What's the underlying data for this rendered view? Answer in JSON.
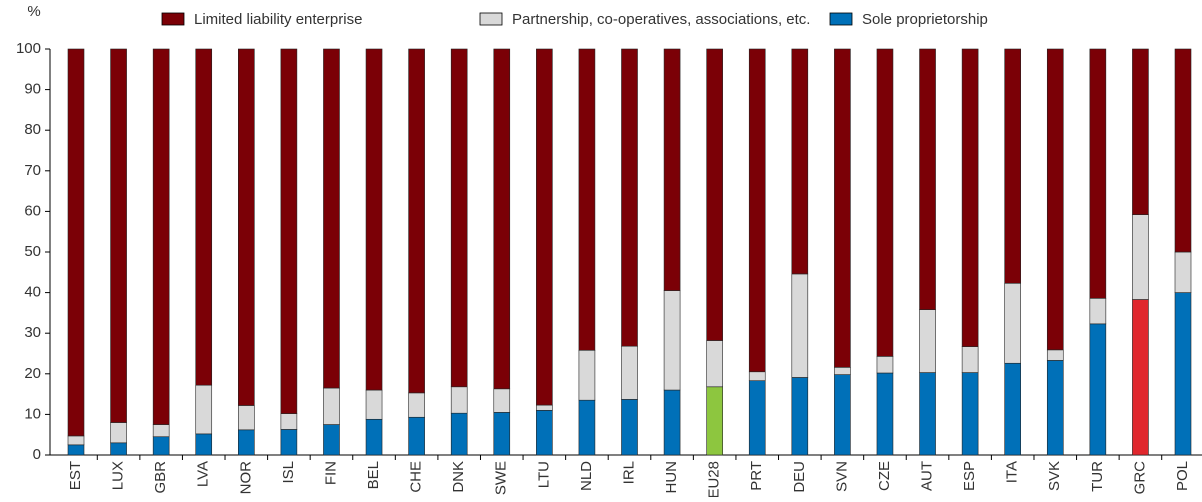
{
  "chart_data": {
    "type": "stacked_bar",
    "y_label": "%",
    "categories": [
      "EST",
      "LUX",
      "GBR",
      "LVA",
      "NOR",
      "ISL",
      "FIN",
      "BEL",
      "CHE",
      "DNK",
      "SWE",
      "LTU",
      "NLD",
      "IRL",
      "HUN",
      "EU28",
      "PRT",
      "DEU",
      "SVN",
      "CZE",
      "AUT",
      "ESP",
      "ITA",
      "SVK",
      "TUR",
      "GRC",
      "POL"
    ],
    "series": [
      {
        "name": "Limited liability enterprise",
        "color": "#7b0006",
        "values": [
          95.3,
          92,
          92.5,
          82.8,
          87.8,
          89.8,
          83.5,
          84,
          84.7,
          83.2,
          83.7,
          87.7,
          74.2,
          73.2,
          59.5,
          71.8,
          79.5,
          55.4,
          78.4,
          75.7,
          64.2,
          73.3,
          57.7,
          74.1,
          61.4,
          40.8,
          50
        ]
      },
      {
        "name": "Partnership, co-operatives, associations, etc.",
        "color": "#d9d9d9",
        "values": [
          2.2,
          5,
          3,
          12,
          6,
          3.9,
          9,
          7.2,
          6,
          6.5,
          5.8,
          1.3,
          12.3,
          13.1,
          24.5,
          11.4,
          2.2,
          25.5,
          1.8,
          4.1,
          15.5,
          6.4,
          19.7,
          2.6,
          6.3,
          20.9,
          10
        ]
      },
      {
        "name": "Sole proprietorship",
        "color": "#0070b8",
        "values": [
          2.5,
          3,
          4.5,
          5.2,
          6.2,
          6.3,
          7.5,
          8.8,
          9.3,
          10.3,
          10.5,
          11,
          13.5,
          13.7,
          16,
          16.8,
          18.3,
          19.1,
          19.8,
          20.2,
          20.3,
          20.3,
          22.6,
          23.3,
          32.3,
          38.3,
          40
        ],
        "point_colors": {
          "EU28": "#8dc63f",
          "GRC": "#e0272d"
        }
      }
    ],
    "ylim": [
      0,
      100
    ],
    "yticks": [
      0,
      10,
      20,
      30,
      40,
      50,
      60,
      70,
      80,
      90,
      100
    ],
    "grid": false,
    "legend": "top"
  }
}
